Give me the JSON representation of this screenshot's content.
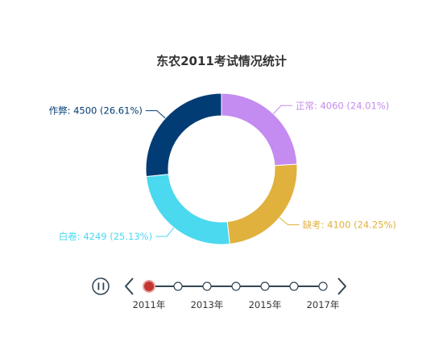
{
  "chart_data": {
    "type": "pie",
    "title": "东农2011考试情况统计",
    "slices": [
      {
        "name": "正常",
        "value": 4060,
        "percent": "24.01%",
        "color": "#c48bf0"
      },
      {
        "name": "缺考",
        "value": 4100,
        "percent": "24.25%",
        "color": "#e0b13d"
      },
      {
        "name": "白卷",
        "value": 4249,
        "percent": "25.13%",
        "color": "#4ad9ef"
      },
      {
        "name": "作弊",
        "value": 4500,
        "percent": "26.61%",
        "color": "#023c74"
      }
    ],
    "total_start_angle": 0,
    "donut": true
  },
  "timeline": {
    "play_state": "paused",
    "current_index": 0,
    "points": [
      "2011年",
      "2012年",
      "2013年",
      "2014年",
      "2015年",
      "2016年",
      "2017年"
    ],
    "visible_labels": [
      "2011年",
      "2013年",
      "2015年",
      "2017年"
    ],
    "active_color": "#c23531",
    "line_color": "#304654"
  }
}
